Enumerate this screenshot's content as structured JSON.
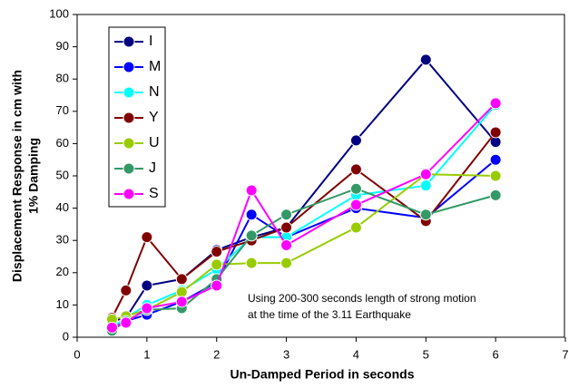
{
  "chart_data": {
    "type": "line",
    "x_label": "Un-Damped Period in seconds",
    "y_label": [
      "Displacement Response in cm with",
      "1% Damping"
    ],
    "annotation": [
      "Using 200-300 seconds length of strong motion",
      "at the time of the 3.11 Earthquake"
    ],
    "x": [
      0.5,
      0.7,
      1,
      1.5,
      2,
      2.5,
      3,
      4,
      5,
      6
    ],
    "series": [
      {
        "name": "I",
        "color": "#000080",
        "values": [
          5,
          6,
          16,
          18,
          27,
          31,
          34,
          61,
          86,
          60.5
        ]
      },
      {
        "name": "M",
        "color": "#0000ff",
        "values": [
          3,
          5,
          7,
          11,
          17,
          38,
          31,
          40,
          37,
          55
        ]
      },
      {
        "name": "N",
        "color": "#00ffff",
        "values": [
          3,
          6,
          10,
          14.5,
          21,
          31,
          31,
          44,
          47,
          72
        ]
      },
      {
        "name": "Y",
        "color": "#800000",
        "values": [
          6,
          14.5,
          31,
          18,
          26.5,
          30,
          34,
          52,
          36,
          63.5
        ]
      },
      {
        "name": "U",
        "color": "#99cc00",
        "values": [
          5.5,
          6.5,
          8.5,
          14,
          22.5,
          23,
          23,
          34,
          50.5,
          50
        ]
      },
      {
        "name": "J",
        "color": "#339966",
        "values": [
          2,
          5,
          8.5,
          9,
          18,
          31.5,
          38,
          46,
          38,
          44
        ]
      },
      {
        "name": "S",
        "color": "#ff00ff",
        "values": [
          3,
          4.5,
          9,
          11,
          16,
          45.5,
          28.5,
          41,
          50.5,
          72.5
        ]
      }
    ],
    "xlim": [
      0,
      7
    ],
    "xticks": [
      0,
      1,
      2,
      3,
      4,
      5,
      6,
      7
    ],
    "ylim": [
      0,
      100
    ],
    "yticks": [
      0,
      10,
      20,
      30,
      40,
      50,
      60,
      70,
      80,
      90,
      100
    ]
  }
}
